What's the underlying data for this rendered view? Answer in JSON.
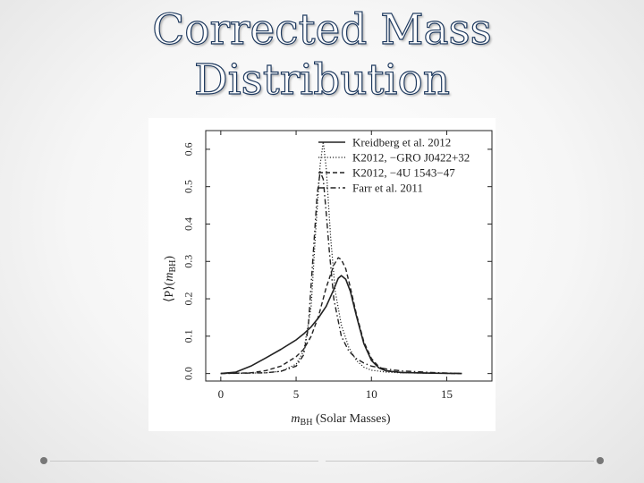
{
  "slide": {
    "title_line1": "Corrected Mass",
    "title_line2": "Distribution"
  },
  "chart_data": {
    "type": "line",
    "title": "",
    "xlabel_main": "m",
    "xlabel_sub": "BH",
    "xlabel_rest": " (Solar Masses)",
    "ylabel_prefix": "⟨P⟩(",
    "ylabel_main": "m",
    "ylabel_sub": "BH",
    "ylabel_suffix": ")",
    "xlim": [
      -1,
      18
    ],
    "ylim": [
      -0.02,
      0.65
    ],
    "xticks": [
      0,
      5,
      10,
      15
    ],
    "xtick_labels": [
      "0",
      "5",
      "10",
      "15"
    ],
    "yticks": [
      0.0,
      0.1,
      0.2,
      0.3,
      0.4,
      0.5,
      0.6
    ],
    "ytick_labels": [
      "0.0",
      "0.1",
      "0.2",
      "0.3",
      "0.4",
      "0.5",
      "0.6"
    ],
    "legend_position": "top-right",
    "grid": false,
    "series": [
      {
        "name": "Kreidberg et al. 2012",
        "style": "solid",
        "x": [
          0,
          1,
          2,
          3,
          4,
          5,
          5.5,
          6,
          6.5,
          7,
          7.5,
          7.8,
          8,
          8.3,
          8.6,
          9,
          9.5,
          10,
          10.5,
          11,
          12,
          14,
          16
        ],
        "y": [
          0,
          0.004,
          0.02,
          0.042,
          0.065,
          0.09,
          0.106,
          0.125,
          0.15,
          0.18,
          0.225,
          0.255,
          0.262,
          0.252,
          0.22,
          0.155,
          0.08,
          0.035,
          0.015,
          0.007,
          0.003,
          0.001,
          0
        ]
      },
      {
        "name": "K2012, −GRO J0422+32",
        "style": "dotted",
        "x": [
          0,
          3,
          4,
          5,
          5.5,
          6,
          6.3,
          6.6,
          6.8,
          7,
          7.3,
          7.6,
          8,
          8.5,
          9,
          9.5,
          10,
          11,
          12,
          14,
          16
        ],
        "y": [
          0,
          0.002,
          0.006,
          0.025,
          0.06,
          0.18,
          0.38,
          0.56,
          0.62,
          0.55,
          0.36,
          0.22,
          0.13,
          0.07,
          0.035,
          0.017,
          0.009,
          0.004,
          0.002,
          0.001,
          0
        ]
      },
      {
        "name": "K2012, −4U 1543−47",
        "style": "dashed",
        "x": [
          0,
          2,
          3,
          4,
          5,
          5.5,
          6,
          6.5,
          7,
          7.5,
          7.8,
          8,
          8.3,
          8.6,
          9,
          9.5,
          10,
          10.5,
          11,
          12,
          14,
          16
        ],
        "y": [
          0,
          0.002,
          0.008,
          0.02,
          0.045,
          0.065,
          0.1,
          0.155,
          0.23,
          0.29,
          0.31,
          0.305,
          0.28,
          0.23,
          0.16,
          0.085,
          0.04,
          0.018,
          0.008,
          0.003,
          0.001,
          0
        ]
      },
      {
        "name": "Farr et al. 2011",
        "style": "dashdot",
        "x": [
          0,
          3,
          4,
          5,
          5.5,
          5.8,
          6.1,
          6.4,
          6.6,
          6.8,
          7,
          7.2,
          7.5,
          8,
          8.5,
          9,
          9.5,
          10,
          11,
          12,
          14,
          16
        ],
        "y": [
          0,
          0.002,
          0.006,
          0.02,
          0.05,
          0.12,
          0.3,
          0.48,
          0.54,
          0.52,
          0.43,
          0.33,
          0.2,
          0.1,
          0.06,
          0.04,
          0.028,
          0.02,
          0.012,
          0.007,
          0.003,
          0
        ]
      }
    ]
  }
}
